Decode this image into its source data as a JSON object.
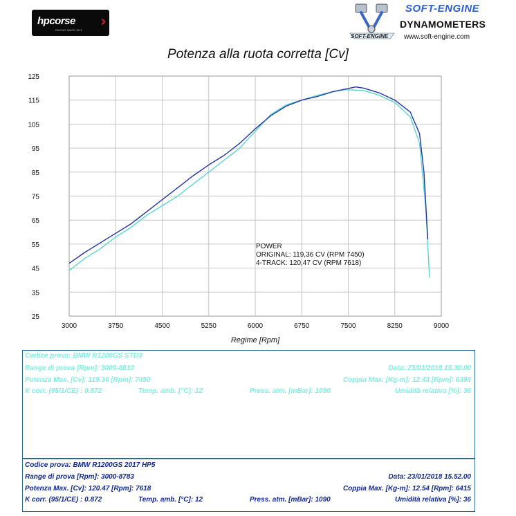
{
  "header": {
    "hp_logo": "hpcorse",
    "hp_logo_sub": "RACING SINCE 1971",
    "se_brand": "SOFT-ENGINE",
    "se_dyno": "DYNAMOMETERS",
    "se_small": "SOFT-ENGINE",
    "se_url": "www.soft-engine.com"
  },
  "annotation": {
    "line1": "POWER",
    "line2": "ORIGINAL: 119,36 CV (RPM 7450)",
    "line3": "4-TRACK: 120,47 CV (RPM 7618)"
  },
  "chart_data": {
    "type": "line",
    "title": "Potenza alla ruota corretta [Cv]",
    "xlabel": "Regime [Rpm]",
    "ylabel": "",
    "xlim": [
      3000,
      9000
    ],
    "ylim": [
      25,
      125
    ],
    "xticks": [
      "3000",
      "3750",
      "4500",
      "5250",
      "6000",
      "6750",
      "7500",
      "8250",
      "9000"
    ],
    "yticks": [
      "125",
      "115",
      "105",
      "95",
      "85",
      "75",
      "65",
      "55",
      "45",
      "35",
      "25"
    ],
    "grid": true,
    "series": [
      {
        "color": "#5ad6d0",
        "x": [
          3000,
          3250,
          3500,
          3750,
          4000,
          4250,
          4500,
          4750,
          5000,
          5250,
          5500,
          5750,
          6000,
          6250,
          6500,
          6750,
          7000,
          7250,
          7450,
          7750,
          8000,
          8250,
          8500,
          8650,
          8750,
          8810
        ],
        "y": [
          44,
          49,
          53,
          58,
          62,
          67,
          71,
          75,
          80,
          85,
          90,
          95,
          102,
          109,
          113,
          115,
          117,
          118.5,
          119.36,
          119,
          117,
          114,
          108,
          97,
          70,
          41
        ]
      },
      {
        "color": "#2233aa",
        "x": [
          3000,
          3250,
          3500,
          3750,
          4000,
          4250,
          4500,
          4750,
          5000,
          5250,
          5500,
          5750,
          6000,
          6250,
          6500,
          6750,
          7000,
          7250,
          7618,
          7750,
          8000,
          8250,
          8500,
          8650,
          8720,
          8783
        ],
        "y": [
          47,
          51.5,
          55.5,
          59.5,
          63.5,
          68.5,
          73.5,
          78.5,
          83.5,
          88,
          92,
          97,
          103,
          108.5,
          112.5,
          115,
          116.5,
          118.5,
          120.47,
          120,
          118,
          115,
          110,
          101,
          85,
          57
        ]
      }
    ]
  },
  "tests": {
    "original": {
      "line1_left": "Codice prova: BMW R1200GS STD3",
      "line2_left": "Range di prova [Rpm]: 3000-8810",
      "line2_right": "Data: 23/01/2018  15.30.00",
      "line3_left": "Potenza Max. [Cv]: 119.36   [Rpm]: 7450",
      "line3_right": "Coppia Max. [Kg-m]: 12.43   [Rpm]: 6393",
      "line4_a": "K corr. (95/1/CE) : 0.872",
      "line4_b": "Temp. amb. [°C]: 12",
      "line4_c": "Press. atm. [mBar]: 1090",
      "line4_d": "Umidità relativa [%]: 36"
    },
    "track": {
      "line1_left": "Codice prova: BMW R1200GS 2017 HP5",
      "line2_left": "Range di prova [Rpm]: 3000-8783",
      "line2_right": "Data: 23/01/2018  15.52.00",
      "line3_left": "Potenza Max. [Cv]: 120.47   [Rpm]: 7618",
      "line3_right": "Coppia Max. [Kg-m]: 12.54   [Rpm]: 6415",
      "line4_a": "K corr. (95/1/CE) : 0.872",
      "line4_b": "Temp. amb. [°C]: 12",
      "line4_c": "Press. atm. [mBar]: 1090",
      "line4_d": "Umidità relativa [%]: 36"
    }
  }
}
